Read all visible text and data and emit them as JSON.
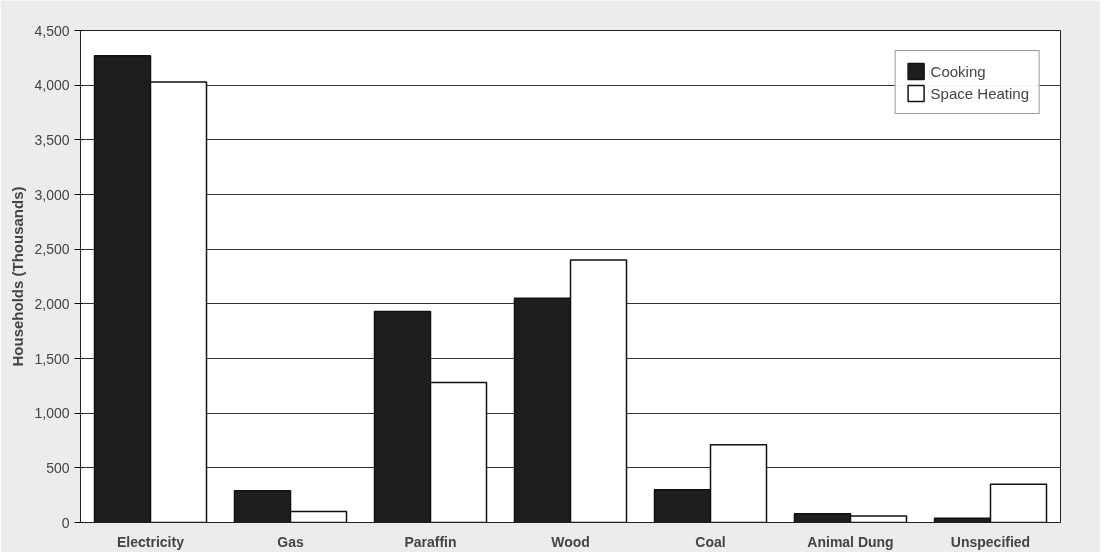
{
  "chart_data": {
    "type": "bar",
    "ylabel": "Households (Thousands)",
    "categories": [
      "Electricity",
      "Gas",
      "Paraffin",
      "Wood",
      "Coal",
      "Animal Dung",
      "Unspecified"
    ],
    "series": [
      {
        "name": "Cooking",
        "color": "#1e1e1e",
        "values": [
          4270,
          290,
          1930,
          2050,
          300,
          80,
          40
        ]
      },
      {
        "name": "Space Heating",
        "color": "#ffffff",
        "values": [
          4030,
          100,
          1280,
          2400,
          710,
          60,
          350
        ]
      }
    ],
    "ylim": [
      0,
      4500
    ],
    "yticks": [
      {
        "value": 0,
        "label": "0"
      },
      {
        "value": 500,
        "label": "500"
      },
      {
        "value": 1000,
        "label": "1,000"
      },
      {
        "value": 1500,
        "label": "1,500"
      },
      {
        "value": 2000,
        "label": "2,000"
      },
      {
        "value": 2500,
        "label": "2,500"
      },
      {
        "value": 3000,
        "label": "3,000"
      },
      {
        "value": 3500,
        "label": "3,500"
      },
      {
        "value": 4000,
        "label": "4,000"
      },
      {
        "value": 4500,
        "label": "4,500"
      }
    ],
    "grid": "y",
    "legend": "top right"
  }
}
